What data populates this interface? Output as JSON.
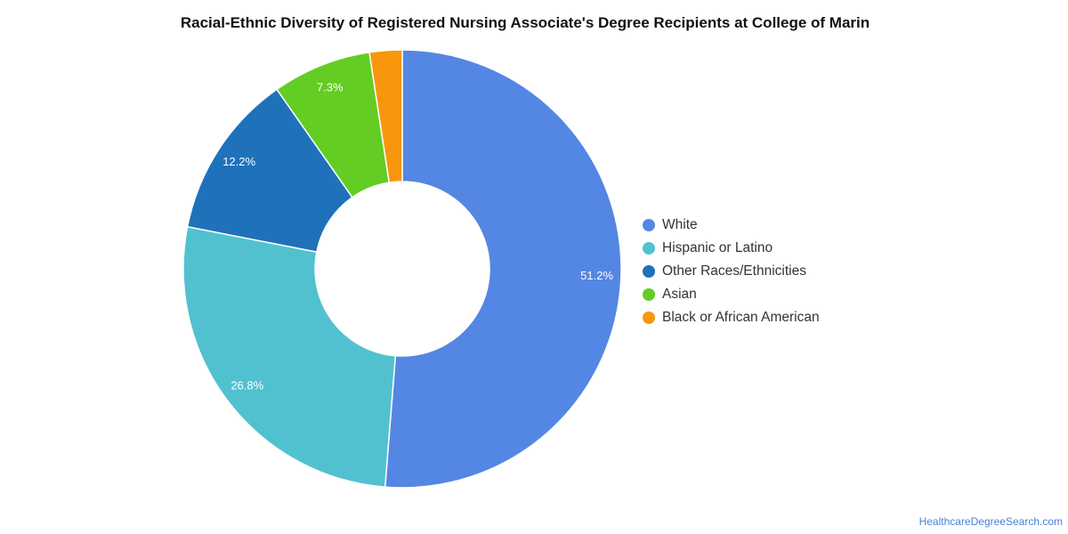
{
  "chart_data": {
    "type": "pie",
    "title": "Racial-Ethnic Diversity of Registered Nursing Associate's Degree Recipients at College of Marin",
    "donut": true,
    "legend_placement": "right",
    "slices": [
      {
        "label": "White",
        "value": 51.2,
        "display": "51.2%",
        "color": "#5486e3"
      },
      {
        "label": "Hispanic or Latino",
        "value": 26.8,
        "display": "26.8%",
        "color": "#51c1d0"
      },
      {
        "label": "Other Races/Ethnicities",
        "value": 12.2,
        "display": "12.2%",
        "color": "#1f72b9"
      },
      {
        "label": "Asian",
        "value": 7.3,
        "display": "7.3%",
        "color": "#63cd23"
      },
      {
        "label": "Black or African American",
        "value": 2.4,
        "display": "",
        "color": "#f8960c"
      }
    ]
  },
  "credit": "HealthcareDegreeSearch.com"
}
